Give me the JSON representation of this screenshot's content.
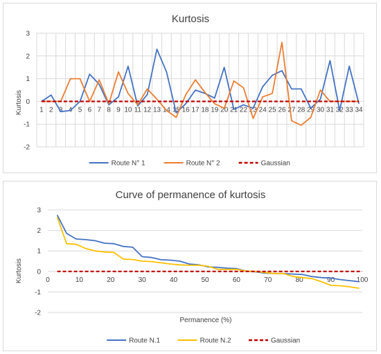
{
  "chart_data": [
    {
      "type": "line",
      "title": "Kurtosis",
      "xlabel": "",
      "ylabel": "Kurtosis",
      "ylim": [
        -2,
        3
      ],
      "yticks": [
        3,
        2,
        1,
        0,
        -1,
        -2
      ],
      "grid": true,
      "legend": "bottom",
      "x": [
        1,
        2,
        3,
        4,
        5,
        6,
        7,
        8,
        9,
        10,
        11,
        12,
        13,
        14,
        15,
        16,
        17,
        18,
        19,
        20,
        21,
        22,
        23,
        24,
        25,
        26,
        27,
        28,
        29,
        30,
        31,
        32,
        33,
        34
      ],
      "categories": [
        "1",
        "2",
        "3",
        "4",
        "5",
        "6",
        "7",
        "8",
        "9",
        "10",
        "11",
        "12",
        "13",
        "14",
        "15",
        "16",
        "17",
        "18",
        "19",
        "20",
        "21",
        "22",
        "23",
        "24",
        "25",
        "26",
        "27",
        "28",
        "29",
        "30",
        "31",
        "32",
        "33",
        "34"
      ],
      "series": [
        {
          "name": "Route N° 1",
          "color": "#4472c4",
          "dash": false,
          "values": [
            0,
            0.28,
            -0.45,
            -0.4,
            0,
            1.2,
            0.75,
            -0.15,
            0.2,
            1.55,
            -0.2,
            0.3,
            2.3,
            1.3,
            -0.5,
            -0.1,
            0.5,
            0.35,
            0.15,
            1.5,
            -0.35,
            -0.15,
            -0.3,
            0.65,
            1.15,
            1.35,
            0.55,
            0.55,
            -0.3,
            0.1,
            1.8,
            -0.4,
            1.55,
            -0.1
          ]
        },
        {
          "name": "Route N° 2",
          "color": "#ed7d31",
          "dash": false,
          "values": [
            0,
            0,
            0,
            1.0,
            1.0,
            0,
            0.95,
            -0.1,
            1.3,
            0.35,
            -0.15,
            0.55,
            0.1,
            -0.4,
            -0.7,
            0.3,
            0.95,
            0.4,
            -0.1,
            -0.3,
            0.9,
            0.6,
            -0.75,
            0.2,
            0.35,
            2.6,
            -0.85,
            -1.05,
            -0.7,
            0.5,
            0,
            0,
            0,
            0
          ]
        },
        {
          "name": "Gaussian",
          "color": "#c00000",
          "dash": true,
          "values": [
            0,
            0,
            0,
            0,
            0,
            0,
            0,
            0,
            0,
            0,
            0,
            0,
            0,
            0,
            0,
            0,
            0,
            0,
            0,
            0,
            0,
            0,
            0,
            0,
            0,
            0,
            0,
            0,
            0,
            0,
            0,
            0,
            0,
            0
          ]
        }
      ]
    },
    {
      "type": "line",
      "title": "Curve of permanence of kurtosis",
      "xlabel": "Permanence (%)",
      "ylabel": "Kurtosis",
      "xlim": [
        0,
        100
      ],
      "ylim": [
        -2,
        3
      ],
      "xticks": [
        0,
        10,
        20,
        30,
        40,
        50,
        60,
        70,
        80,
        90,
        100
      ],
      "yticks": [
        3,
        2,
        1,
        0,
        -1,
        -2
      ],
      "grid": true,
      "legend": "bottom",
      "series": [
        {
          "name": "Route N.1",
          "color": "#4472c4",
          "dash": false,
          "x": [
            3,
            6,
            9,
            12,
            15,
            18,
            21,
            24,
            27,
            30,
            33,
            36,
            39,
            42,
            45,
            48,
            51,
            54,
            57,
            60,
            63,
            66,
            69,
            72,
            75,
            78,
            81,
            84,
            87,
            90,
            93,
            96,
            99
          ],
          "y": [
            2.75,
            1.85,
            1.58,
            1.55,
            1.5,
            1.38,
            1.35,
            1.22,
            1.18,
            0.72,
            0.68,
            0.57,
            0.55,
            0.5,
            0.36,
            0.32,
            0.22,
            0.2,
            0.16,
            0.14,
            0.02,
            -0.02,
            -0.08,
            -0.1,
            -0.1,
            -0.13,
            -0.15,
            -0.25,
            -0.3,
            -0.32,
            -0.4,
            -0.45,
            -0.5
          ]
        },
        {
          "name": "Route N.2",
          "color": "#ffc000",
          "dash": false,
          "x": [
            3,
            6,
            9,
            12,
            15,
            18,
            21,
            24,
            27,
            30,
            33,
            36,
            39,
            42,
            45,
            48,
            51,
            54,
            57,
            60,
            63,
            66,
            69,
            72,
            75,
            78,
            81,
            84,
            87,
            90,
            93,
            96,
            99
          ],
          "y": [
            2.65,
            1.35,
            1.32,
            1.12,
            1.0,
            0.95,
            0.93,
            0.6,
            0.58,
            0.5,
            0.48,
            0.42,
            0.36,
            0.32,
            0.3,
            0.3,
            0.25,
            0.1,
            0.1,
            0.1,
            0.02,
            0,
            -0.05,
            -0.1,
            -0.1,
            -0.25,
            -0.3,
            -0.35,
            -0.5,
            -0.68,
            -0.7,
            -0.75,
            -0.82
          ]
        },
        {
          "name": "Gaussian",
          "color": "#c00000",
          "dash": true,
          "x": [
            3,
            100
          ],
          "y": [
            0,
            0
          ]
        }
      ]
    }
  ]
}
